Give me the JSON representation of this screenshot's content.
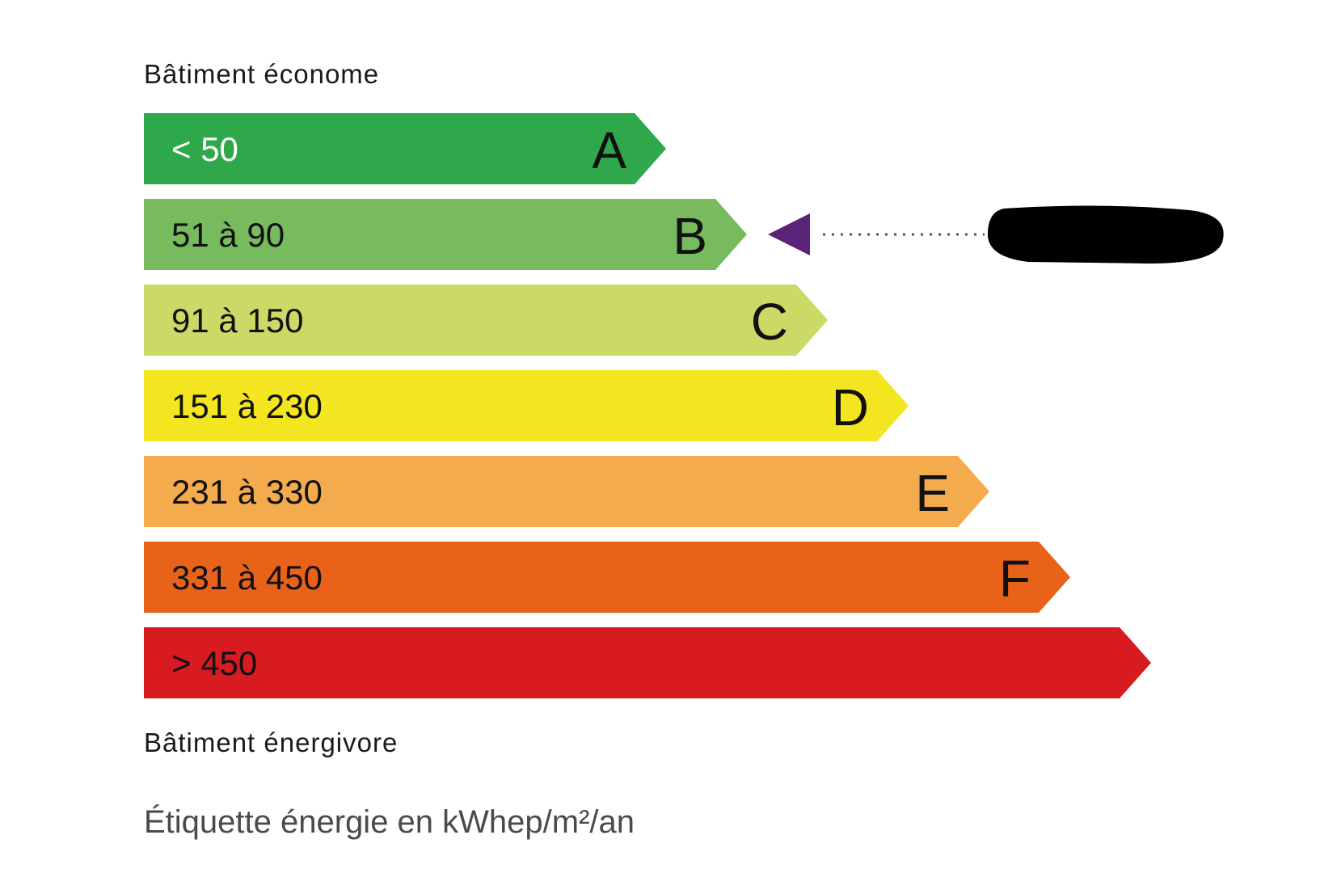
{
  "chart_data": {
    "type": "bar",
    "title": "",
    "top_label": "Bâtiment économe",
    "bottom_label": "Bâtiment énergivore",
    "unit_caption": "Étiquette énergie en kWhep/m²/an",
    "classes": [
      {
        "range": "< 50",
        "letter": "A",
        "color": "#2ea84a",
        "text_color": "#ffffff"
      },
      {
        "range": "51 à 90",
        "letter": "B",
        "color": "#78bb5e",
        "text_color": "#111111"
      },
      {
        "range": "91 à 150",
        "letter": "C",
        "color": "#cbd966",
        "text_color": "#111111"
      },
      {
        "range": "151 à 230",
        "letter": "D",
        "color": "#f3e51f",
        "text_color": "#111111"
      },
      {
        "range": "231 à 330",
        "letter": "E",
        "color": "#f4ab4d",
        "text_color": "#111111"
      },
      {
        "range": "331 à 450",
        "letter": "F",
        "color": "#e9621a",
        "text_color": "#111111"
      },
      {
        "range": "> 450",
        "letter": "",
        "color": "#d81a21",
        "text_color": "#111111"
      }
    ],
    "indicated_class": "B",
    "indicator_color": "#5b2378",
    "indicator_value_redacted": true
  }
}
